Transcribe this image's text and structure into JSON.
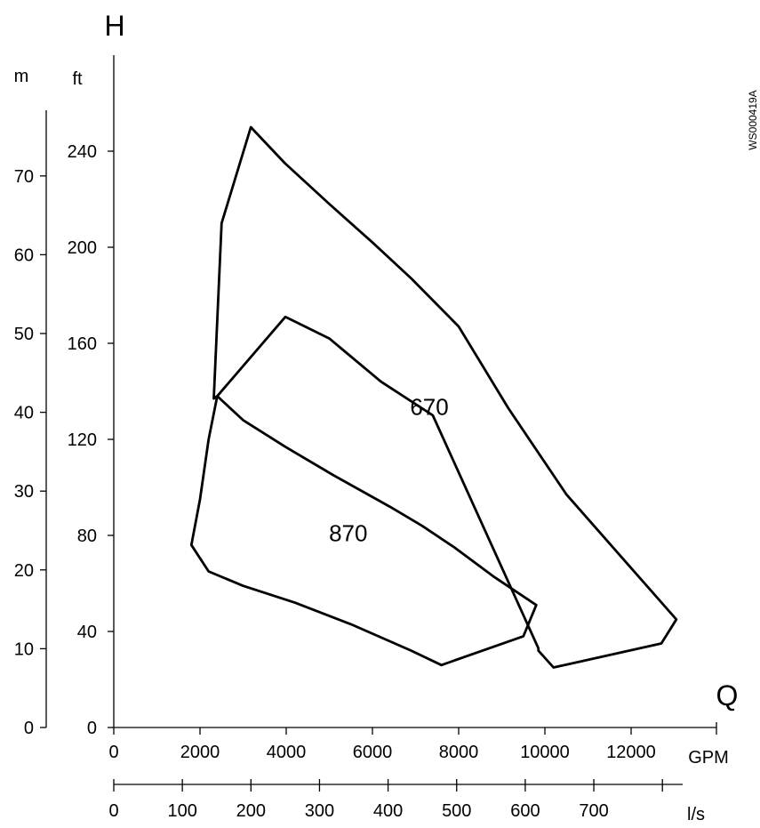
{
  "figure_code": "WS000419A",
  "chart_data": {
    "type": "line",
    "title": "",
    "y_axis_letter": "H",
    "x_axis_letter": "Q",
    "y_axes": [
      {
        "unit": "m",
        "ticks": [
          0,
          10,
          20,
          30,
          40,
          50,
          60,
          70
        ],
        "range": [
          0,
          90
        ]
      },
      {
        "unit": "ft",
        "ticks": [
          0,
          40,
          80,
          120,
          160,
          200,
          240
        ],
        "range": [
          0,
          295
        ]
      }
    ],
    "x_axes": [
      {
        "unit": "GPM",
        "ticks": [
          0,
          2000,
          4000,
          6000,
          8000,
          10000,
          12000
        ],
        "range": [
          0,
          14000
        ]
      },
      {
        "unit": "l/s",
        "ticks": [
          0,
          100,
          200,
          300,
          400,
          500,
          600,
          700
        ],
        "range": [
          0,
          820
        ]
      }
    ],
    "series": [
      {
        "name": "670",
        "x_unit": "GPM",
        "y_unit": "ft",
        "closed": true,
        "points": [
          [
            3180,
            250
          ],
          [
            3970,
            235
          ],
          [
            5000,
            218
          ],
          [
            6000,
            202
          ],
          [
            6900,
            187
          ],
          [
            8000,
            167
          ],
          [
            9150,
            133
          ],
          [
            10500,
            97
          ],
          [
            13050,
            45
          ],
          [
            12700,
            35
          ],
          [
            10200,
            25
          ],
          [
            9850,
            32
          ],
          [
            9850,
            33
          ],
          [
            7400,
            130
          ],
          [
            6200,
            144
          ],
          [
            5000,
            162
          ],
          [
            3980,
            171
          ],
          [
            2400,
            138
          ],
          [
            2320,
            137
          ],
          [
            2500,
            210
          ]
        ]
      },
      {
        "name": "870",
        "x_unit": "GPM",
        "y_unit": "ft",
        "closed": true,
        "points": [
          [
            2400,
            138
          ],
          [
            3000,
            128
          ],
          [
            3970,
            117
          ],
          [
            5100,
            105
          ],
          [
            6400,
            92
          ],
          [
            7150,
            84
          ],
          [
            7900,
            75
          ],
          [
            8800,
            63
          ],
          [
            9800,
            51
          ],
          [
            9500,
            38
          ],
          [
            7600,
            26
          ],
          [
            6900,
            32
          ],
          [
            5500,
            43
          ],
          [
            4200,
            52
          ],
          [
            3000,
            59
          ],
          [
            2200,
            65
          ],
          [
            1800,
            76
          ],
          [
            2000,
            95
          ],
          [
            2200,
            120
          ]
        ]
      }
    ]
  }
}
